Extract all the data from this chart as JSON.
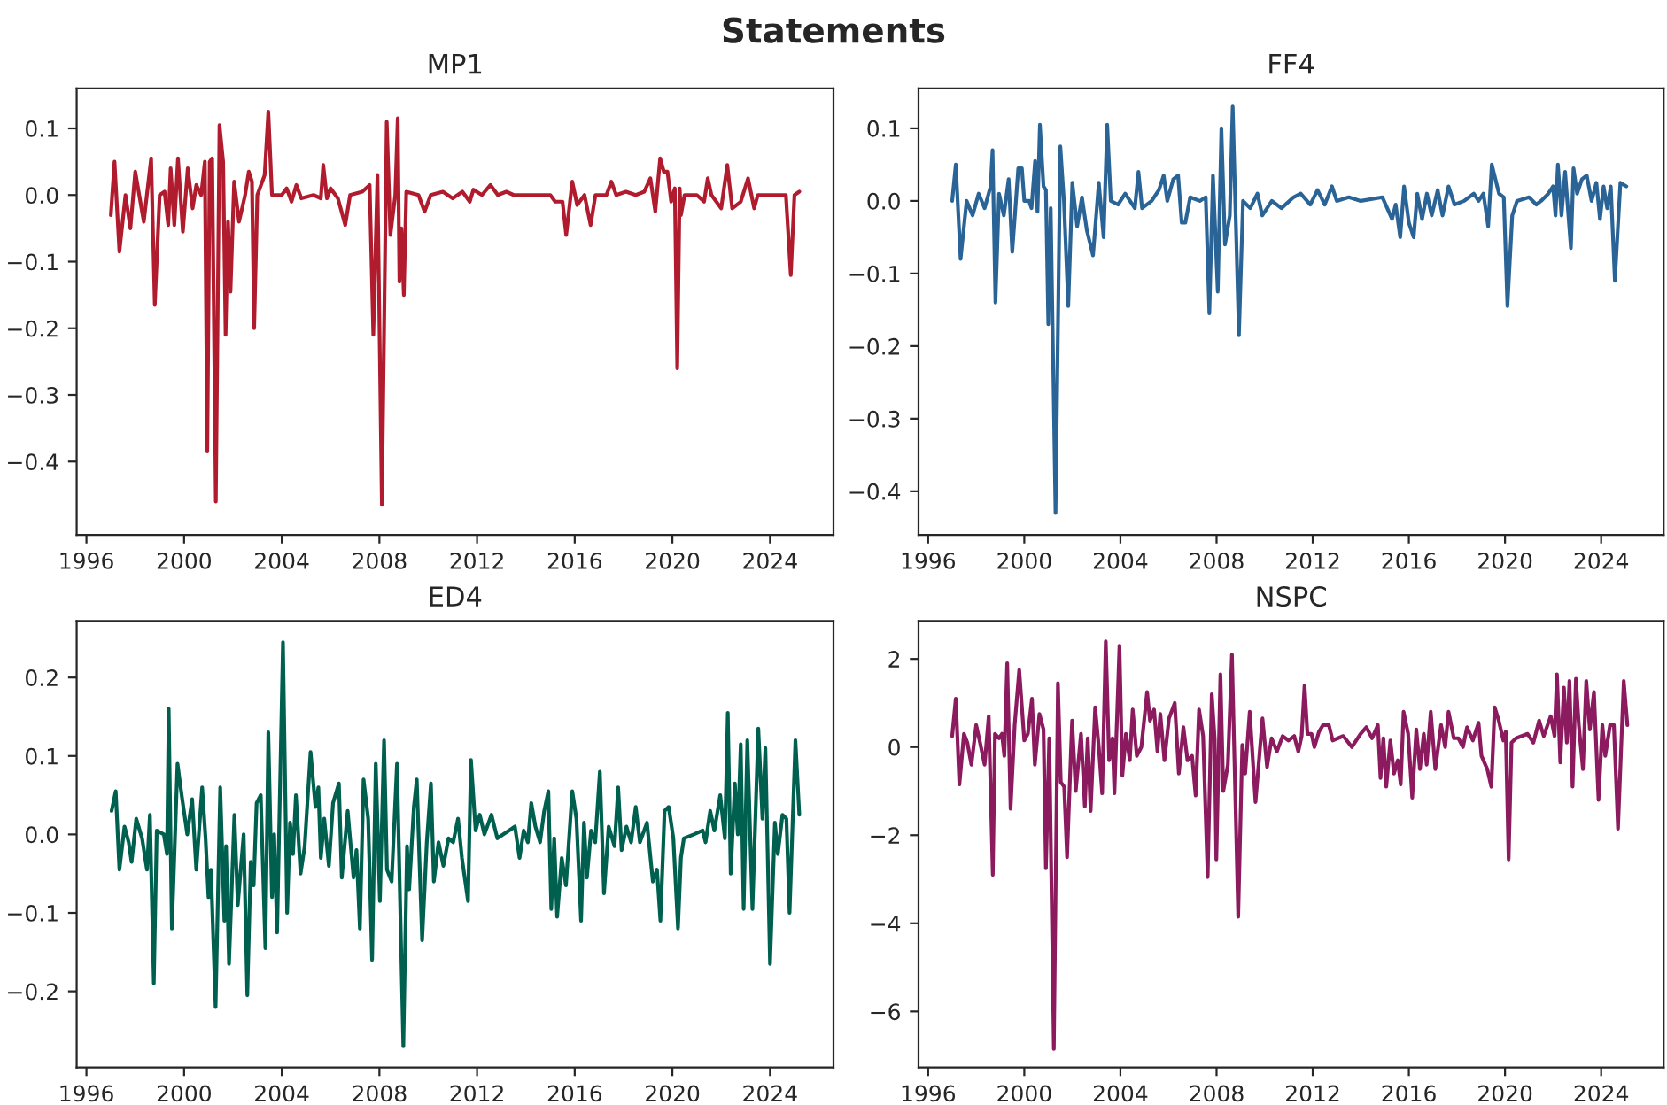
{
  "chart_data": [
    {
      "type": "line",
      "title": "MP1",
      "annotations": [
        "Statements"
      ],
      "x": [
        1997.0,
        1997.15,
        1997.35,
        1997.6,
        1997.8,
        1998.0,
        1998.35,
        1998.65,
        1998.8,
        1999.0,
        1999.2,
        1999.35,
        1999.45,
        1999.6,
        1999.75,
        1999.95,
        2000.15,
        2000.35,
        2000.5,
        2000.7,
        2000.85,
        2000.95,
        2001.05,
        2001.15,
        2001.3,
        2001.45,
        2001.6,
        2001.7,
        2001.8,
        2001.9,
        2002.05,
        2002.25,
        2002.5,
        2002.65,
        2002.78,
        2002.87,
        2003.0,
        2003.3,
        2003.45,
        2003.6,
        2004.0,
        2004.2,
        2004.4,
        2004.6,
        2004.8,
        2005.3,
        2005.6,
        2005.7,
        2005.85,
        2006.0,
        2006.3,
        2006.6,
        2006.8,
        2007.3,
        2007.6,
        2007.75,
        2007.92,
        2008.1,
        2008.3,
        2008.45,
        2008.65,
        2008.75,
        2008.82,
        2008.9,
        2009.0,
        2009.1,
        2009.6,
        2009.85,
        2010.1,
        2010.6,
        2011.0,
        2011.4,
        2011.7,
        2011.85,
        2012.2,
        2012.55,
        2012.85,
        2013.2,
        2013.5,
        2015.0,
        2015.2,
        2015.5,
        2015.65,
        2015.9,
        2016.1,
        2016.4,
        2016.65,
        2016.85,
        2017.3,
        2017.5,
        2017.7,
        2018.1,
        2018.5,
        2018.85,
        2019.1,
        2019.3,
        2019.5,
        2019.65,
        2019.8,
        2019.95,
        2020.1,
        2020.2,
        2020.3,
        2020.35,
        2020.5,
        2021.0,
        2021.3,
        2021.45,
        2021.6,
        2022.0,
        2022.25,
        2022.45,
        2022.8,
        2023.1,
        2023.35,
        2023.5,
        2023.9,
        2024.65,
        2024.85,
        2025.0,
        2025.2
      ],
      "series": [
        {
          "color": "#b01c2e",
          "values": [
            -0.03,
            0.05,
            -0.085,
            0.0,
            -0.05,
            0.035,
            -0.04,
            0.055,
            -0.165,
            0.0,
            0.005,
            -0.045,
            0.04,
            -0.045,
            0.055,
            -0.055,
            0.04,
            -0.02,
            0.015,
            0.0,
            0.05,
            -0.385,
            0.05,
            0.055,
            -0.46,
            0.105,
            0.05,
            -0.21,
            -0.04,
            -0.145,
            0.02,
            -0.04,
            0.0,
            0.035,
            0.02,
            -0.2,
            0.0,
            0.03,
            0.125,
            0.0,
            0.0,
            0.01,
            -0.01,
            0.015,
            -0.005,
            0.0,
            -0.005,
            0.045,
            -0.005,
            0.01,
            -0.005,
            -0.045,
            0.0,
            0.005,
            0.015,
            -0.21,
            0.03,
            -0.465,
            0.11,
            -0.06,
            0.0,
            0.115,
            -0.13,
            -0.05,
            -0.15,
            0.005,
            0.0,
            -0.025,
            0.0,
            0.005,
            -0.005,
            0.005,
            -0.01,
            0.008,
            0.0,
            0.015,
            0.0,
            0.005,
            0.0,
            0.0,
            -0.01,
            -0.01,
            -0.06,
            0.02,
            -0.015,
            0.0,
            -0.045,
            0.0,
            0.0,
            0.02,
            0.0,
            0.005,
            0.0,
            0.005,
            0.025,
            -0.025,
            0.055,
            0.035,
            0.035,
            -0.01,
            0.01,
            -0.26,
            0.01,
            -0.03,
            0.0,
            0.0,
            -0.01,
            0.025,
            0.0,
            -0.02,
            0.045,
            -0.02,
            -0.01,
            0.025,
            -0.02,
            0.0,
            0.0,
            0.0,
            -0.12,
            0.0,
            0.005
          ]
        }
      ],
      "xlim": [
        1995.6,
        2026.6
      ],
      "xticks": [
        1996,
        2000,
        2004,
        2008,
        2012,
        2016,
        2020,
        2024
      ],
      "ylim": [
        -0.51,
        0.16
      ],
      "yticks": [
        {
          "value": -0.4,
          "label": "−0.4"
        },
        {
          "value": -0.3,
          "label": "−0.3"
        },
        {
          "value": -0.2,
          "label": "−0.2"
        },
        {
          "value": -0.1,
          "label": "−0.1"
        },
        {
          "value": 0,
          "label": "0.0"
        },
        0.1
      ],
      "grid": false
    },
    {
      "type": "line",
      "title": "FF4",
      "x": [
        1997.0,
        1997.15,
        1997.35,
        1997.6,
        1997.85,
        1998.1,
        1998.35,
        1998.6,
        1998.68,
        1998.8,
        1998.95,
        1999.15,
        1999.35,
        1999.5,
        1999.75,
        1999.9,
        2000.0,
        2000.2,
        2000.3,
        2000.45,
        2000.55,
        2000.65,
        2000.8,
        2000.9,
        2001.0,
        2001.1,
        2001.3,
        2001.5,
        2001.65,
        2001.83,
        2002.0,
        2002.2,
        2002.4,
        2002.6,
        2002.86,
        2003.1,
        2003.3,
        2003.45,
        2003.6,
        2003.9,
        2004.2,
        2004.6,
        2004.75,
        2004.9,
        2005.3,
        2005.6,
        2005.8,
        2005.95,
        2006.2,
        2006.4,
        2006.55,
        2006.7,
        2006.9,
        2007.3,
        2007.55,
        2007.7,
        2007.85,
        2008.05,
        2008.2,
        2008.35,
        2008.55,
        2008.67,
        2008.93,
        2009.1,
        2009.4,
        2009.7,
        2009.9,
        2010.3,
        2010.7,
        2011.2,
        2011.5,
        2011.9,
        2012.2,
        2012.5,
        2012.8,
        2013.0,
        2013.5,
        2014.0,
        2014.9,
        2015.1,
        2015.3,
        2015.45,
        2015.64,
        2015.8,
        2016.0,
        2016.2,
        2016.35,
        2016.55,
        2016.75,
        2016.95,
        2017.2,
        2017.4,
        2017.65,
        2017.9,
        2018.3,
        2018.7,
        2018.9,
        2019.1,
        2019.3,
        2019.45,
        2019.75,
        2019.95,
        2020.1,
        2020.3,
        2020.5,
        2021.0,
        2021.3,
        2021.5,
        2021.8,
        2022.0,
        2022.1,
        2022.2,
        2022.35,
        2022.5,
        2022.74,
        2022.85,
        2023.0,
        2023.2,
        2023.4,
        2023.6,
        2023.8,
        2023.95,
        2024.1,
        2024.25,
        2024.4,
        2024.57,
        2024.8,
        2025.05
      ],
      "series": [
        {
          "color": "#2a6496",
          "values": [
            0.0,
            0.05,
            -0.08,
            0.0,
            -0.02,
            0.01,
            -0.01,
            0.02,
            0.07,
            -0.14,
            0.01,
            -0.02,
            0.03,
            -0.07,
            0.045,
            0.045,
            0.0,
            0.0,
            -0.01,
            0.055,
            -0.015,
            0.105,
            0.02,
            0.015,
            -0.17,
            -0.01,
            -0.43,
            0.075,
            0.0,
            -0.145,
            0.025,
            -0.035,
            0.005,
            -0.04,
            -0.075,
            0.025,
            -0.05,
            0.105,
            0.0,
            -0.005,
            0.01,
            -0.01,
            0.04,
            -0.01,
            0.0,
            0.015,
            0.035,
            0.0,
            0.03,
            0.035,
            -0.03,
            -0.03,
            0.005,
            0.0,
            0.005,
            -0.155,
            0.035,
            -0.125,
            0.1,
            -0.06,
            -0.02,
            0.13,
            -0.185,
            0.0,
            -0.01,
            0.01,
            -0.02,
            0.0,
            -0.01,
            0.005,
            0.01,
            -0.005,
            0.015,
            -0.005,
            0.02,
            0.0,
            0.005,
            0.0,
            0.005,
            -0.01,
            -0.025,
            -0.005,
            -0.05,
            0.02,
            -0.03,
            -0.05,
            0.01,
            -0.025,
            0.01,
            -0.02,
            0.015,
            -0.02,
            0.02,
            -0.005,
            0.0,
            0.01,
            0.0,
            0.01,
            -0.035,
            0.05,
            0.01,
            0.005,
            -0.145,
            -0.02,
            0.0,
            0.005,
            -0.005,
            0.0,
            0.01,
            0.02,
            -0.02,
            0.05,
            -0.02,
            0.04,
            -0.065,
            0.045,
            0.01,
            0.03,
            0.035,
            0.0,
            0.025,
            -0.025,
            0.02,
            -0.01,
            0.02,
            -0.11,
            0.025,
            0.02
          ]
        }
      ],
      "xlim": [
        1995.6,
        2026.6
      ],
      "xticks": [
        1996,
        2000,
        2004,
        2008,
        2012,
        2016,
        2020,
        2024
      ],
      "ylim": [
        -0.46,
        0.155
      ],
      "yticks": [
        {
          "value": -0.4,
          "label": "−0.4"
        },
        {
          "value": -0.3,
          "label": "−0.3"
        },
        {
          "value": -0.2,
          "label": "−0.2"
        },
        {
          "value": -0.1,
          "label": "−0.1"
        },
        {
          "value": 0,
          "label": "0.0"
        },
        0.1
      ],
      "grid": false
    },
    {
      "type": "line",
      "title": "ED4",
      "x": [
        1997.03,
        1997.2,
        1997.35,
        1997.56,
        1997.73,
        1997.85,
        1998.04,
        1998.28,
        1998.48,
        1998.6,
        1998.76,
        1998.88,
        1999.17,
        1999.3,
        1999.37,
        1999.5,
        1999.73,
        1999.9,
        2000.13,
        2000.33,
        2000.5,
        2000.74,
        2000.88,
        2001.0,
        2001.1,
        2001.29,
        2001.48,
        2001.65,
        2001.72,
        2001.84,
        2002.06,
        2002.2,
        2002.44,
        2002.59,
        2002.73,
        2002.85,
        2002.97,
        2003.14,
        2003.33,
        2003.45,
        2003.6,
        2003.69,
        2003.81,
        2004.05,
        2004.22,
        2004.34,
        2004.46,
        2004.58,
        2004.77,
        2004.94,
        2005.18,
        2005.38,
        2005.5,
        2005.6,
        2005.74,
        2005.93,
        2006.1,
        2006.34,
        2006.46,
        2006.7,
        2006.94,
        2007.06,
        2007.2,
        2007.35,
        2007.54,
        2007.7,
        2007.85,
        2008.02,
        2008.19,
        2008.31,
        2008.5,
        2008.72,
        2008.98,
        2009.13,
        2009.22,
        2009.41,
        2009.53,
        2009.75,
        2009.94,
        2010.11,
        2010.23,
        2010.42,
        2010.62,
        2010.83,
        2011.02,
        2011.22,
        2011.38,
        2011.63,
        2011.75,
        2011.94,
        2012.11,
        2012.3,
        2012.59,
        2012.83,
        2013.31,
        2013.55,
        2013.74,
        2013.91,
        2014.08,
        2014.22,
        2014.39,
        2014.58,
        2014.75,
        2014.92,
        2015.04,
        2015.16,
        2015.28,
        2015.47,
        2015.64,
        2015.9,
        2016.07,
        2016.26,
        2016.38,
        2016.5,
        2016.67,
        2016.84,
        2017.03,
        2017.2,
        2017.39,
        2017.63,
        2017.78,
        2017.92,
        2018.12,
        2018.31,
        2018.5,
        2018.67,
        2018.96,
        2019.2,
        2019.37,
        2019.51,
        2019.68,
        2019.85,
        2020.04,
        2020.23,
        2020.35,
        2020.47,
        2020.88,
        2021.24,
        2021.36,
        2021.55,
        2021.72,
        2021.96,
        2022.15,
        2022.27,
        2022.39,
        2022.56,
        2022.68,
        2022.8,
        2022.92,
        2023.07,
        2023.28,
        2023.52,
        2023.69,
        2023.81,
        2024.0,
        2024.2,
        2024.32,
        2024.51,
        2024.67,
        2024.8,
        2025.04,
        2025.2
      ],
      "series": [
        {
          "color": "#00604f",
          "values": [
            0.03,
            0.055,
            -0.045,
            0.01,
            -0.01,
            -0.035,
            0.02,
            -0.005,
            -0.045,
            0.025,
            -0.19,
            0.005,
            0.0,
            -0.025,
            0.16,
            -0.12,
            0.09,
            0.05,
            0.0,
            0.045,
            -0.045,
            0.06,
            -0.005,
            -0.08,
            -0.045,
            -0.22,
            0.06,
            -0.11,
            -0.015,
            -0.165,
            0.025,
            -0.09,
            0.0,
            -0.205,
            -0.035,
            -0.065,
            0.04,
            0.05,
            -0.145,
            0.13,
            -0.08,
            0.0,
            -0.125,
            0.245,
            -0.1,
            0.015,
            -0.025,
            0.05,
            -0.05,
            -0.015,
            0.105,
            0.035,
            0.06,
            -0.03,
            0.02,
            -0.04,
            0.04,
            0.065,
            -0.055,
            0.03,
            -0.055,
            -0.02,
            -0.12,
            0.07,
            0.02,
            -0.16,
            0.09,
            -0.085,
            0.12,
            -0.045,
            -0.06,
            0.09,
            -0.27,
            -0.015,
            -0.07,
            0.035,
            0.07,
            -0.135,
            -0.01,
            0.065,
            -0.06,
            -0.01,
            -0.04,
            -0.005,
            -0.01,
            0.02,
            -0.03,
            -0.085,
            0.095,
            0.005,
            0.025,
            0.0,
            0.025,
            -0.005,
            0.005,
            0.01,
            -0.03,
            0.005,
            -0.01,
            0.04,
            0.01,
            -0.01,
            0.03,
            0.055,
            -0.095,
            -0.005,
            -0.105,
            -0.03,
            -0.065,
            0.055,
            0.02,
            -0.11,
            0.015,
            -0.055,
            0.005,
            -0.01,
            0.08,
            -0.075,
            0.01,
            -0.015,
            0.06,
            -0.02,
            0.01,
            -0.01,
            0.035,
            -0.01,
            0.015,
            -0.06,
            -0.045,
            -0.11,
            0.03,
            0.035,
            -0.005,
            -0.12,
            -0.03,
            -0.005,
            0.0,
            0.005,
            -0.01,
            0.03,
            0.005,
            0.05,
            -0.005,
            0.155,
            -0.05,
            0.065,
            0.0,
            0.115,
            -0.095,
            0.12,
            -0.095,
            0.135,
            0.02,
            0.11,
            -0.165,
            0.015,
            -0.025,
            0.025,
            0.02,
            -0.1,
            0.12,
            0.025
          ]
        }
      ],
      "xlim": [
        1995.6,
        2026.6
      ],
      "xticks": [
        1996,
        2000,
        2004,
        2008,
        2012,
        2016,
        2020,
        2024
      ],
      "ylim": [
        -0.297,
        0.272
      ],
      "yticks": [
        {
          "value": -0.2,
          "label": "−0.2"
        },
        {
          "value": -0.1,
          "label": "−0.1"
        },
        {
          "value": 0,
          "label": "0.0"
        },
        0.1,
        0.2
      ],
      "grid": false
    },
    {
      "type": "line",
      "title": "NSPC",
      "x": [
        1997.0,
        1997.15,
        1997.3,
        1997.49,
        1997.63,
        1997.8,
        1998.0,
        1998.16,
        1998.35,
        1998.52,
        1998.69,
        1998.78,
        1998.95,
        1999.07,
        1999.17,
        1999.29,
        1999.43,
        1999.6,
        1999.79,
        2000.0,
        2000.15,
        2000.32,
        2000.44,
        2000.63,
        2000.8,
        2000.9,
        2001.04,
        2001.23,
        2001.4,
        2001.52,
        2001.66,
        2001.78,
        2001.99,
        2002.14,
        2002.36,
        2002.52,
        2002.64,
        2002.76,
        2002.95,
        2003.1,
        2003.24,
        2003.39,
        2003.53,
        2003.67,
        2003.75,
        2003.96,
        2004.08,
        2004.23,
        2004.39,
        2004.51,
        2004.68,
        2004.87,
        2005.11,
        2005.23,
        2005.4,
        2005.54,
        2005.66,
        2005.83,
        2006.02,
        2006.26,
        2006.43,
        2006.62,
        2006.79,
        2006.98,
        2007.13,
        2007.27,
        2007.44,
        2007.63,
        2007.8,
        2007.92,
        2007.99,
        2008.16,
        2008.28,
        2008.47,
        2008.64,
        2008.9,
        2009.07,
        2009.19,
        2009.38,
        2009.62,
        2009.91,
        2010.1,
        2010.29,
        2010.51,
        2010.75,
        2010.99,
        2011.23,
        2011.4,
        2011.54,
        2011.66,
        2011.78,
        2011.95,
        2012.07,
        2012.26,
        2012.43,
        2012.67,
        2012.83,
        2013.27,
        2013.63,
        2013.99,
        2014.23,
        2014.47,
        2014.71,
        2014.82,
        2014.94,
        2015.06,
        2015.23,
        2015.38,
        2015.54,
        2015.66,
        2015.78,
        2015.97,
        2016.14,
        2016.31,
        2016.46,
        2016.62,
        2016.74,
        2016.91,
        2017.1,
        2017.34,
        2017.51,
        2017.65,
        2017.87,
        2018.06,
        2018.25,
        2018.42,
        2018.66,
        2018.9,
        2019.02,
        2019.26,
        2019.43,
        2019.57,
        2019.74,
        2019.93,
        2020.03,
        2020.15,
        2020.27,
        2020.46,
        2020.94,
        2021.18,
        2021.42,
        2021.61,
        2021.9,
        2022.06,
        2022.16,
        2022.3,
        2022.45,
        2022.57,
        2022.68,
        2022.81,
        2022.95,
        2023.07,
        2023.24,
        2023.38,
        2023.53,
        2023.7,
        2023.89,
        2024.05,
        2024.17,
        2024.37,
        2024.53,
        2024.7,
        2024.94,
        2025.09
      ],
      "series": [
        {
          "color": "#8b1a5e",
          "values": [
            0.25,
            1.1,
            -0.85,
            0.3,
            0.1,
            -0.4,
            0.5,
            0.1,
            -0.4,
            0.7,
            -2.9,
            0.3,
            0.2,
            0.3,
            -0.2,
            1.9,
            -1.4,
            0.5,
            1.75,
            0.15,
            0.3,
            1.1,
            -0.4,
            0.75,
            0.4,
            -2.75,
            0.2,
            -6.85,
            1.45,
            -0.8,
            -0.9,
            -2.5,
            0.6,
            -1.0,
            0.3,
            -1.35,
            0.2,
            -1.45,
            0.9,
            0.0,
            -1.05,
            2.4,
            -0.3,
            0.2,
            -1.05,
            2.3,
            -0.65,
            0.3,
            -0.3,
            0.85,
            -0.2,
            0.0,
            1.25,
            0.6,
            0.85,
            -0.1,
            0.75,
            -0.3,
            0.65,
            1.0,
            -0.6,
            0.45,
            -0.3,
            -0.2,
            -1.1,
            0.85,
            0.25,
            -2.95,
            1.2,
            0.2,
            -2.55,
            1.65,
            -1.0,
            -0.4,
            2.1,
            -3.85,
            0.05,
            -0.6,
            0.8,
            -1.25,
            0.65,
            -0.45,
            0.2,
            -0.1,
            0.25,
            0.15,
            0.25,
            -0.1,
            0.25,
            1.4,
            0.3,
            0.3,
            0.0,
            0.35,
            0.5,
            0.5,
            0.15,
            0.25,
            0.0,
            0.3,
            0.45,
            0.2,
            0.5,
            -0.7,
            0.2,
            -0.9,
            0.15,
            -0.6,
            -0.3,
            -0.85,
            0.8,
            0.3,
            -1.15,
            0.4,
            -0.5,
            0.3,
            -0.4,
            0.8,
            -0.5,
            0.5,
            0.0,
            0.8,
            0.2,
            0.2,
            0.0,
            0.45,
            0.15,
            0.55,
            -0.2,
            -0.5,
            -0.9,
            0.9,
            0.6,
            0.15,
            0.35,
            -2.55,
            0.1,
            0.2,
            0.3,
            0.1,
            0.6,
            0.25,
            0.7,
            0.25,
            1.65,
            -0.35,
            1.35,
            0.1,
            1.5,
            -0.9,
            1.55,
            0.5,
            -0.5,
            1.5,
            0.4,
            1.25,
            -1.2,
            0.5,
            -0.2,
            0.5,
            0.5,
            -1.85,
            1.5,
            0.5
          ]
        }
      ],
      "xlim": [
        1995.6,
        2026.6
      ],
      "xticks": [
        1996,
        2000,
        2004,
        2008,
        2012,
        2016,
        2020,
        2024
      ],
      "ylim": [
        -7.27,
        2.86
      ],
      "yticks": [
        {
          "value": -6,
          "label": "−6"
        },
        {
          "value": -4,
          "label": "−4"
        },
        {
          "value": -2,
          "label": "−2"
        },
        0,
        2
      ],
      "grid": false
    }
  ]
}
